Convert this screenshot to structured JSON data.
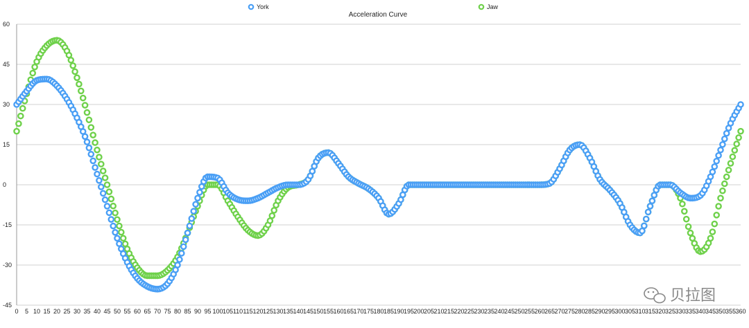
{
  "colors": {
    "york": "#4A9FF5",
    "jaw": "#6FD14B",
    "grid": "#D0D0D0",
    "axis": "#999999",
    "text": "#222222",
    "watermark": "#888888"
  },
  "watermark": {
    "text": "贝拉图",
    "icon": "wechat-icon"
  },
  "chart_data": {
    "type": "scatter",
    "title": "Acceleration Curve",
    "xlabel": "",
    "ylabel": "",
    "xlim": [
      0,
      360
    ],
    "ylim": [
      -45,
      60
    ],
    "yticks": [
      -45,
      -30,
      -15,
      0,
      15,
      30,
      45,
      60
    ],
    "xtick_step": 5,
    "grid": true,
    "legend_position": "top",
    "series": [
      {
        "name": "York",
        "color_key": "york",
        "points": [
          [
            0,
            30
          ],
          [
            5,
            35
          ],
          [
            10,
            39
          ],
          [
            15,
            39.5
          ],
          [
            20,
            37
          ],
          [
            25,
            32
          ],
          [
            30,
            25
          ],
          [
            35,
            16
          ],
          [
            40,
            4
          ],
          [
            45,
            -8
          ],
          [
            50,
            -20
          ],
          [
            55,
            -29
          ],
          [
            60,
            -35
          ],
          [
            65,
            -38
          ],
          [
            70,
            -39
          ],
          [
            75,
            -37
          ],
          [
            80,
            -30
          ],
          [
            85,
            -18
          ],
          [
            90,
            -5
          ],
          [
            95,
            3
          ],
          [
            100,
            2.5
          ],
          [
            105,
            -3
          ],
          [
            110,
            -5.5
          ],
          [
            115,
            -6
          ],
          [
            120,
            -5
          ],
          [
            125,
            -3
          ],
          [
            130,
            -1
          ],
          [
            135,
            0
          ],
          [
            140,
            0
          ],
          [
            145,
            2
          ],
          [
            150,
            10
          ],
          [
            155,
            12
          ],
          [
            160,
            8
          ],
          [
            165,
            3
          ],
          [
            170,
            0.5
          ],
          [
            175,
            -1.5
          ],
          [
            180,
            -5
          ],
          [
            185,
            -11
          ],
          [
            190,
            -7
          ],
          [
            195,
            0
          ],
          [
            200,
            0
          ],
          [
            210,
            0
          ],
          [
            220,
            0
          ],
          [
            230,
            0
          ],
          [
            240,
            0
          ],
          [
            250,
            0
          ],
          [
            260,
            0
          ],
          [
            265,
            0.5
          ],
          [
            270,
            6
          ],
          [
            275,
            13
          ],
          [
            280,
            15
          ],
          [
            285,
            10
          ],
          [
            290,
            2
          ],
          [
            295,
            -2
          ],
          [
            300,
            -7
          ],
          [
            305,
            -15
          ],
          [
            310,
            -18
          ],
          [
            315,
            -8
          ],
          [
            320,
            0
          ],
          [
            325,
            0
          ],
          [
            330,
            -3
          ],
          [
            335,
            -5
          ],
          [
            340,
            -4
          ],
          [
            345,
            3
          ],
          [
            350,
            13
          ],
          [
            355,
            23
          ],
          [
            360,
            30
          ]
        ]
      },
      {
        "name": "Jaw",
        "color_key": "jaw",
        "points": [
          [
            0,
            20
          ],
          [
            5,
            34
          ],
          [
            10,
            46
          ],
          [
            15,
            52
          ],
          [
            20,
            54
          ],
          [
            25,
            50
          ],
          [
            30,
            40
          ],
          [
            35,
            27
          ],
          [
            40,
            13
          ],
          [
            45,
            0
          ],
          [
            50,
            -13
          ],
          [
            55,
            -24
          ],
          [
            60,
            -31
          ],
          [
            65,
            -34
          ],
          [
            70,
            -34
          ],
          [
            75,
            -32
          ],
          [
            80,
            -27
          ],
          [
            85,
            -18
          ],
          [
            90,
            -8
          ],
          [
            95,
            0
          ],
          [
            100,
            0
          ],
          [
            105,
            -6
          ],
          [
            110,
            -12
          ],
          [
            115,
            -17
          ],
          [
            120,
            -19
          ],
          [
            125,
            -15
          ],
          [
            130,
            -6
          ],
          [
            135,
            -1
          ],
          [
            140,
            0
          ],
          [
            145,
            2
          ],
          [
            150,
            10
          ],
          [
            155,
            12
          ],
          [
            160,
            8
          ],
          [
            165,
            3
          ],
          [
            170,
            0.5
          ],
          [
            175,
            -1.5
          ],
          [
            180,
            -5
          ],
          [
            185,
            -11
          ],
          [
            190,
            -7
          ],
          [
            195,
            0
          ],
          [
            200,
            0
          ],
          [
            210,
            0
          ],
          [
            220,
            0
          ],
          [
            230,
            0
          ],
          [
            240,
            0
          ],
          [
            250,
            0
          ],
          [
            260,
            0
          ],
          [
            265,
            0.5
          ],
          [
            270,
            6
          ],
          [
            275,
            13
          ],
          [
            280,
            15
          ],
          [
            285,
            10
          ],
          [
            290,
            2
          ],
          [
            295,
            -2
          ],
          [
            300,
            -7
          ],
          [
            305,
            -15
          ],
          [
            310,
            -18
          ],
          [
            315,
            -8
          ],
          [
            320,
            0
          ],
          [
            325,
            0
          ],
          [
            330,
            -5
          ],
          [
            335,
            -18
          ],
          [
            340,
            -25
          ],
          [
            345,
            -20
          ],
          [
            350,
            -5
          ],
          [
            355,
            8
          ],
          [
            360,
            20
          ]
        ]
      }
    ]
  }
}
